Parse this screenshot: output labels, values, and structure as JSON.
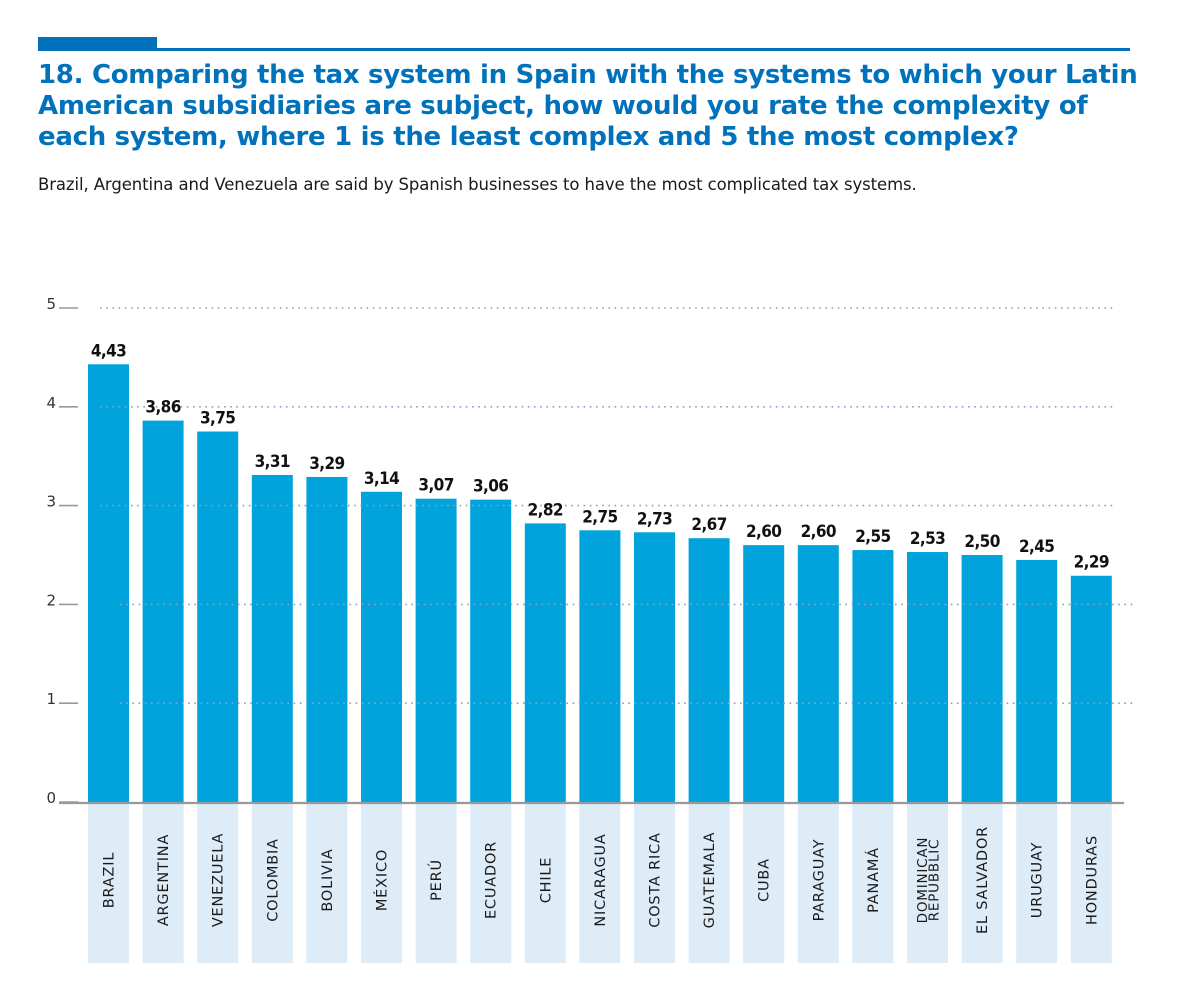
{
  "header": {
    "question_number": "18.",
    "question_text": "Comparing the tax system in Spain with the systems to which your Latin American subsidiaries are subject, how would you rate the complexity of each system, where 1 is the least complex and 5 the most complex?",
    "subtitle": "Brazil, Argentina and Venezuela are said by Spanish businesses to have the most complicated tax systems."
  },
  "colors": {
    "accent": "#0072bb",
    "bar": "#00a3dc",
    "label_bg": "#ddecf7",
    "grid": "#8aa0c8",
    "axis": "#999999"
  },
  "chart_data": {
    "type": "bar",
    "title": "Comparing the tax system in Spain with the systems to which your Latin American subsidiaries are subject, how would you rate the complexity of each system, where 1 is the least complex and 5 the most complex?",
    "xlabel": "",
    "ylabel": "",
    "ylim": [
      0,
      5
    ],
    "yticks": [
      0,
      1,
      2,
      3,
      4,
      5
    ],
    "grid": true,
    "decimal_separator": ",",
    "categories": [
      "BRAZIL",
      "ARGENTINA",
      "VENEZUELA",
      "COLOMBIA",
      "BOLIVIA",
      "MÉXICO",
      "PERÚ",
      "ECUADOR",
      "CHILE",
      "NICARAGUA",
      "COSTA RICA",
      "GUATEMALA",
      "CUBA",
      "PARAGUAY",
      "PANAMÁ",
      "DOMINICAN REPUBBLIC",
      "EL SALVADOR",
      "URUGUAY",
      "HONDURAS"
    ],
    "category_lines": [
      [
        "BRAZIL"
      ],
      [
        "ARGENTINA"
      ],
      [
        "VENEZUELA"
      ],
      [
        "COLOMBIA"
      ],
      [
        "BOLIVIA"
      ],
      [
        "MÉXICO"
      ],
      [
        "PERÚ"
      ],
      [
        "ECUADOR"
      ],
      [
        "CHILE"
      ],
      [
        "NICARAGUA"
      ],
      [
        "COSTA RICA"
      ],
      [
        "GUATEMALA"
      ],
      [
        "CUBA"
      ],
      [
        "PARAGUAY"
      ],
      [
        "PANAMÁ"
      ],
      [
        "DOMINICAN",
        "REPUBBLIC"
      ],
      [
        "EL SALVADOR"
      ],
      [
        "URUGUAY"
      ],
      [
        "HONDURAS"
      ]
    ],
    "values": [
      4.43,
      3.86,
      3.75,
      3.31,
      3.29,
      3.14,
      3.07,
      3.06,
      2.82,
      2.75,
      2.73,
      2.67,
      2.6,
      2.6,
      2.55,
      2.53,
      2.5,
      2.45,
      2.29
    ],
    "value_labels": [
      "4,43",
      "3,86",
      "3,75",
      "3,31",
      "3,29",
      "3,14",
      "3,07",
      "3,06",
      "2,82",
      "2,75",
      "2,73",
      "2,67",
      "2,60",
      "2,60",
      "2,55",
      "2,53",
      "2,50",
      "2,45",
      "2,29"
    ]
  }
}
